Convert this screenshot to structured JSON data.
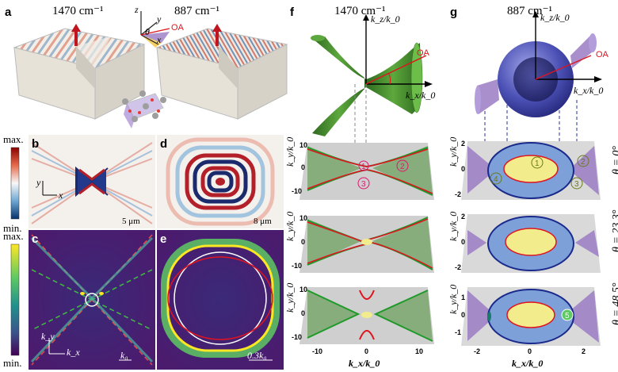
{
  "panels": {
    "a": "a",
    "b": "b",
    "c": "c",
    "d": "d",
    "e": "e",
    "f": "f",
    "g": "g"
  },
  "headers": {
    "left_freq": "1470 cm⁻¹",
    "mid_freq": "887 cm⁻¹",
    "f_freq": "1470 cm⁻¹",
    "g_freq": "887 cm⁻¹"
  },
  "axes_labels": {
    "z": "z",
    "y": "y",
    "x": "x",
    "theta": "θ",
    "oa": "OA",
    "kz": "k_z/k_0",
    "kx": "k_x/k_0",
    "ky": "k_y/k_0",
    "kx_bottom": "k_x/k_0",
    "ky_small": "k_y",
    "kx_small": "k_x"
  },
  "colorbars": {
    "top_max": "max.",
    "top_min": "min.",
    "bottom_max": "max.",
    "bottom_min": "min."
  },
  "scalebars": {
    "b": "5 μm",
    "d": "8 μm",
    "c": "k₀",
    "e": "0.3k₀"
  },
  "f_ticks": {
    "y_top": "10",
    "y_zero": "0",
    "y_bottom": "-10",
    "x": [
      "-10",
      "0",
      "10"
    ]
  },
  "g_ticks": {
    "y_top": "2",
    "y_zero": "0",
    "y_bottom": "-2",
    "y_top_small": "1",
    "y_bottom_small": "-1",
    "x": [
      "-2",
      "0",
      "2"
    ]
  },
  "circled_numbers": {
    "f": [
      "1",
      "2",
      "3"
    ],
    "g": [
      "1",
      "2",
      "3",
      "4",
      "5"
    ]
  },
  "angles": {
    "theta0": "θ = 0°",
    "theta1": "θ = 23.3°",
    "theta2": "θ = 48.5°"
  },
  "colors": {
    "green_surface": "#3f7f2a",
    "blue_sphere": "#3b3fa6",
    "purple_cone": "#9b7bc4",
    "red_curve": "#e0141e",
    "green_curve": "#1f9a2a",
    "yellow_fill": "#f2ec8c",
    "plane_gray": "#d9d9d9"
  }
}
